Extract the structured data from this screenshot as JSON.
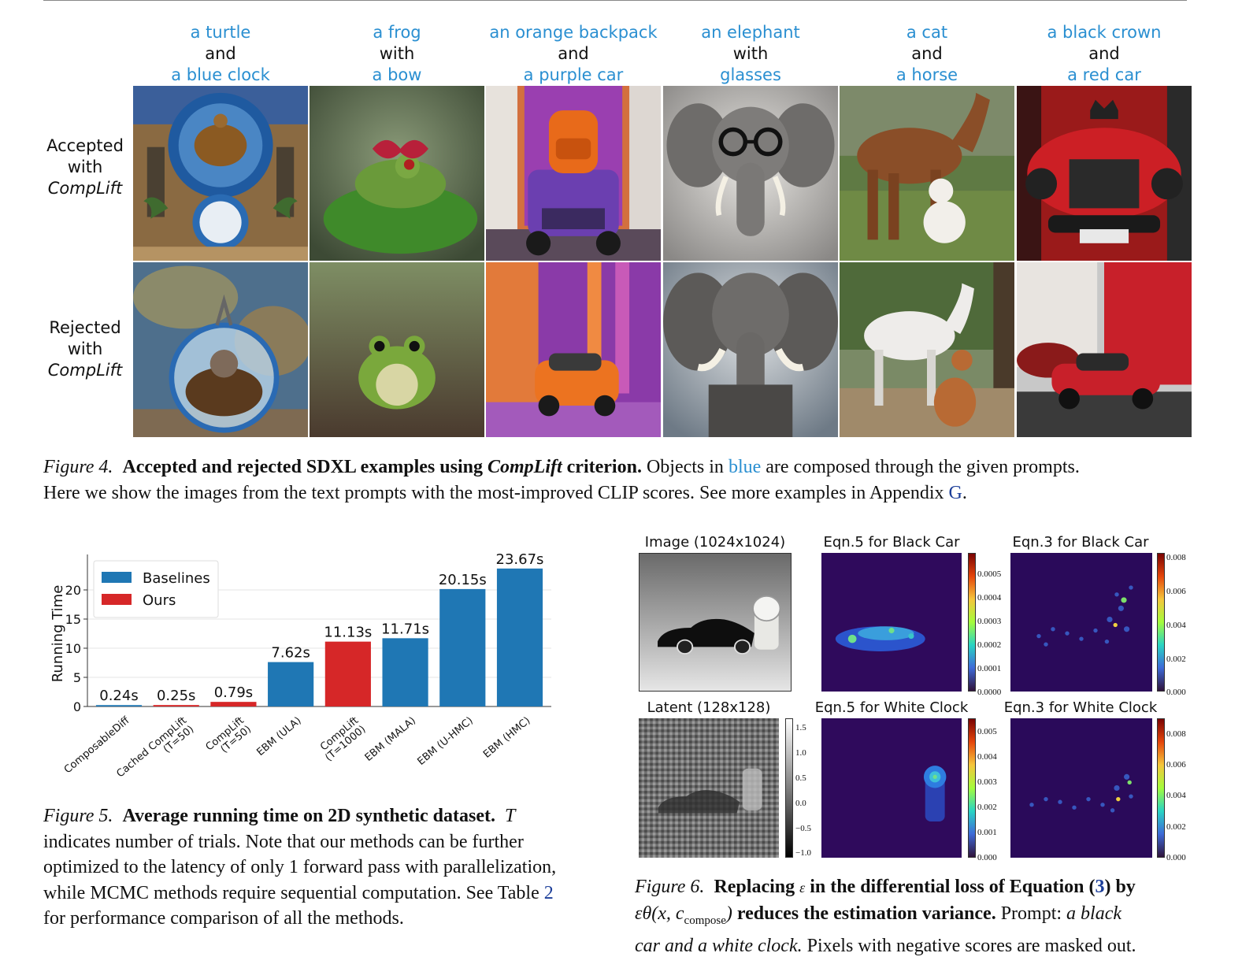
{
  "figure4": {
    "columns": [
      {
        "top": "a turtle",
        "connector": "and",
        "bottom": "a blue clock"
      },
      {
        "top": "a frog",
        "connector": "with",
        "bottom": "a bow"
      },
      {
        "top": "an orange backpack",
        "connector": "and",
        "bottom": "a purple car"
      },
      {
        "top": "an elephant",
        "connector": "with",
        "bottom": "glasses"
      },
      {
        "top": "a cat",
        "connector": "and",
        "bottom": "a horse"
      },
      {
        "top": "a black crown",
        "connector": "and",
        "bottom": "a red car"
      }
    ],
    "rows": [
      {
        "line1": "Accepted",
        "line2": "with",
        "line3": "CompLift"
      },
      {
        "line1": "Rejected",
        "line2": "with",
        "line3": "CompLift"
      }
    ],
    "caption": {
      "label": "Figure 4.",
      "bold_a": "Accepted and rejected SDXL examples using ",
      "bold_italic": "CompLift",
      "bold_b": " criterion.",
      "text_a": " Objects in ",
      "blue_word": "blue",
      "text_b": " are composed through the given prompts.",
      "line2": "Here we show the images from the text prompts with the most-improved CLIP scores. See more examples in Appendix ",
      "appendix_ref": "G",
      "end": "."
    },
    "colors": {
      "blue_text": "#2a8fd1",
      "ref": "#1c3e99"
    }
  },
  "figure5": {
    "caption": {
      "label": "Figure 5.",
      "bold": "Average running time on 2D synthetic dataset.",
      "var": "T",
      "line1_rest": "indicates number of trials. Note that our methods can be further",
      "line2": "optimized to the latency of only 1 forward pass with parallelization,",
      "line3_a": "while MCMC methods require sequential computation. See Table ",
      "table_ref": "2",
      "line4": "for performance comparison of all the methods."
    }
  },
  "chart_data": {
    "type": "bar",
    "categories": [
      "ComposableDiff",
      "Cached CompLift\n(T=50)",
      "CompLift\n(T=50)",
      "EBM (ULA)",
      "CompLift\n(T=1000)",
      "EBM (MALA)",
      "EBM (U-HMC)",
      "EBM (HMC)"
    ],
    "values": [
      0.24,
      0.25,
      0.79,
      7.62,
      11.13,
      11.71,
      20.15,
      23.67
    ],
    "value_labels": [
      "0.24s",
      "0.25s",
      "0.79s",
      "7.62s",
      "11.13s",
      "11.71s",
      "20.15s",
      "23.67s"
    ],
    "groups": [
      "Baselines",
      "Ours",
      "Ours",
      "Baselines",
      "Ours",
      "Baselines",
      "Baselines",
      "Baselines"
    ],
    "legend": [
      {
        "name": "Baselines",
        "color": "#1f77b4"
      },
      {
        "name": "Ours",
        "color": "#d62728"
      }
    ],
    "legend_position": "top-left",
    "ylabel": "Running Time",
    "yticks": [
      "0",
      "5",
      "10",
      "15",
      "20"
    ],
    "ylim": [
      0,
      25
    ],
    "grid": true
  },
  "figure6": {
    "panels": {
      "image": "Image (1024x1024)",
      "eqn5_black_car": "Eqn.5 for Black Car",
      "eqn3_black_car": "Eqn.3 for Black Car",
      "latent": "Latent (128x128)",
      "eqn5_white_clock": "Eqn.5 for White Clock",
      "eqn3_white_clock": "Eqn.3 for White Clock"
    },
    "colorbars": {
      "eqn5_black_car": [
        "0.0005",
        "0.0004",
        "0.0003",
        "0.0002",
        "0.0001",
        "0.0000"
      ],
      "eqn3_black_car": [
        "0.008",
        "0.006",
        "0.004",
        "0.002",
        "0.000"
      ],
      "latent": [
        "1.5",
        "1.0",
        "0.5",
        "0.0",
        "−0.5",
        "−1.0"
      ],
      "eqn5_white_clock": [
        "0.005",
        "0.004",
        "0.003",
        "0.002",
        "0.001",
        "0.000"
      ],
      "eqn3_white_clock": [
        "0.008",
        "0.006",
        "0.004",
        "0.002",
        "0.000"
      ]
    },
    "caption": {
      "label": "Figure 6.",
      "bold_a": "Replacing ",
      "eps": "ε",
      "bold_b": " in the differential loss of Equation (",
      "eq_ref": "3",
      "bold_c": ") by",
      "math": "εθ(x, c",
      "math_sub": "compose",
      "math_end": ")",
      "bold_d": " reduces the estimation variance.",
      "prompt_label": " Prompt: ",
      "prompt_italic_a": "a black",
      "prompt_italic_b": "car and a white clock.",
      "line3_rest": " Pixels with negative scores are masked out."
    }
  }
}
